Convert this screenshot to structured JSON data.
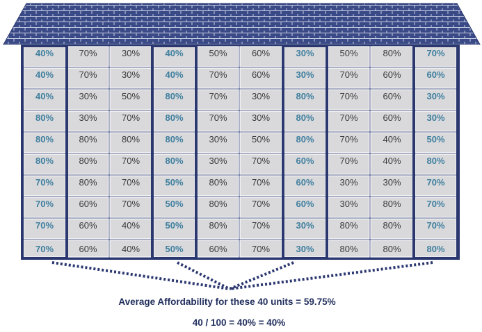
{
  "colors": {
    "roof": "#3a4a86",
    "roof_line": "#c9cfe6",
    "frame": "#2b3870",
    "cell": "#d9d9dc",
    "cell_border": "#ffffff",
    "text": "#3a3a3a",
    "highlight_text": "#3f7f9e",
    "caption": "#1f2d5c"
  },
  "building": {
    "columns": [
      {
        "highlighted": true,
        "values": [
          "40%",
          "40%",
          "40%",
          "80%",
          "80%",
          "80%",
          "70%",
          "70%",
          "70%",
          "70%"
        ]
      },
      {
        "highlighted": false,
        "values": [
          "70%",
          "70%",
          "30%",
          "30%",
          "80%",
          "80%",
          "80%",
          "60%",
          "60%",
          "60%"
        ]
      },
      {
        "highlighted": false,
        "values": [
          "30%",
          "30%",
          "50%",
          "70%",
          "80%",
          "70%",
          "70%",
          "70%",
          "40%",
          "40%"
        ]
      },
      {
        "highlighted": true,
        "values": [
          "40%",
          "40%",
          "80%",
          "80%",
          "80%",
          "80%",
          "50%",
          "50%",
          "50%",
          "50%"
        ]
      },
      {
        "highlighted": false,
        "values": [
          "50%",
          "70%",
          "70%",
          "70%",
          "30%",
          "30%",
          "80%",
          "80%",
          "80%",
          "60%"
        ]
      },
      {
        "highlighted": false,
        "values": [
          "60%",
          "60%",
          "30%",
          "30%",
          "50%",
          "70%",
          "70%",
          "70%",
          "70%",
          "70%"
        ]
      },
      {
        "highlighted": true,
        "values": [
          "30%",
          "30%",
          "80%",
          "80%",
          "80%",
          "60%",
          "60%",
          "60%",
          "30%",
          "30%"
        ]
      },
      {
        "highlighted": false,
        "values": [
          "50%",
          "70%",
          "70%",
          "70%",
          "70%",
          "70%",
          "30%",
          "30%",
          "80%",
          "80%"
        ]
      },
      {
        "highlighted": false,
        "values": [
          "80%",
          "60%",
          "60%",
          "60%",
          "40%",
          "40%",
          "30%",
          "80%",
          "80%",
          "80%"
        ]
      },
      {
        "highlighted": true,
        "values": [
          "70%",
          "60%",
          "30%",
          "30%",
          "50%",
          "80%",
          "70%",
          "70%",
          "70%",
          "80%"
        ]
      }
    ]
  },
  "caption": {
    "average": "Average Affordability for these 40 units = 59.75%",
    "ratio": "40 / 100 = 40% = 40%"
  }
}
